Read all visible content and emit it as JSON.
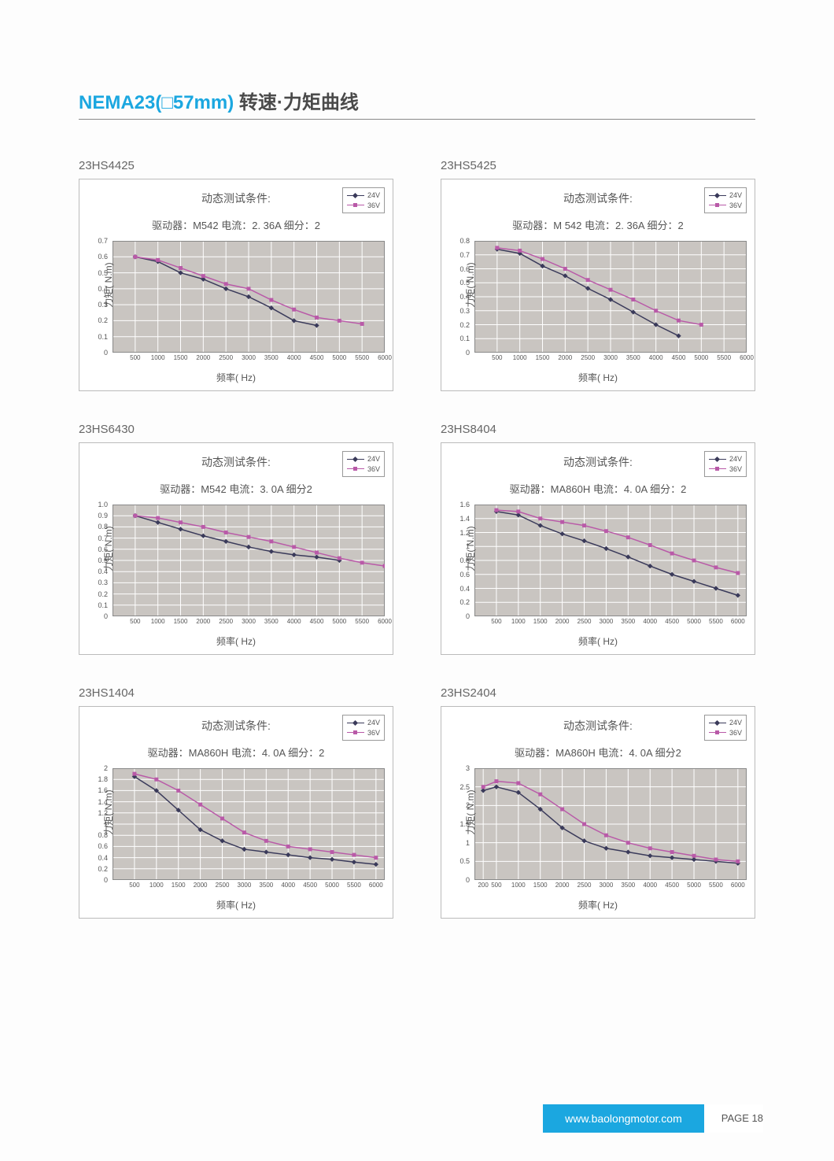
{
  "page_title_prefix": "NEMA23(",
  "page_title_size": "57mm)",
  "page_title_suffix": " 转速·力矩曲线",
  "footer_url": "www.baolongmotor.com",
  "footer_page": "PAGE 18",
  "legend": {
    "s1": "24V",
    "s2": "36V"
  },
  "axis_labels": {
    "y": "力矩( N.m)",
    "x": "频率( Hz)"
  },
  "cond_title": "动态测试条件:",
  "colors": {
    "s1": "#3a3a5a",
    "s2": "#b95aa8",
    "plot_bg": "#c9c5c1",
    "grid": "#ffffff",
    "tick_text": "#555555",
    "title_blue": "#1ba7e0"
  },
  "charts": [
    {
      "model": "23HS4425",
      "cond": "驱动器：M542    电流：2. 36A   细分：2",
      "ylim": [
        0,
        0.7
      ],
      "ystep": 0.1,
      "xticks": [
        500,
        1000,
        1500,
        2000,
        2500,
        3000,
        3500,
        4000,
        4500,
        5000,
        5500,
        6000
      ],
      "xlim": [
        0,
        6000
      ],
      "s1": [
        [
          500,
          0.6
        ],
        [
          1000,
          0.57
        ],
        [
          1500,
          0.5
        ],
        [
          2000,
          0.46
        ],
        [
          2500,
          0.4
        ],
        [
          3000,
          0.35
        ],
        [
          3500,
          0.28
        ],
        [
          4000,
          0.2
        ],
        [
          4500,
          0.17
        ]
      ],
      "s2": [
        [
          500,
          0.6
        ],
        [
          1000,
          0.58
        ],
        [
          1500,
          0.53
        ],
        [
          2000,
          0.48
        ],
        [
          2500,
          0.43
        ],
        [
          3000,
          0.4
        ],
        [
          3500,
          0.33
        ],
        [
          4000,
          0.27
        ],
        [
          4500,
          0.22
        ],
        [
          5000,
          0.2
        ],
        [
          5500,
          0.18
        ]
      ]
    },
    {
      "model": "23HS5425",
      "cond": "驱动器：M 542    电流：2. 36A   细分：2",
      "ylim": [
        0,
        0.8
      ],
      "ystep": 0.1,
      "xticks": [
        500,
        1000,
        1500,
        2000,
        2500,
        3000,
        3500,
        4000,
        4500,
        5000,
        5500,
        6000
      ],
      "xlim": [
        0,
        6000
      ],
      "s1": [
        [
          500,
          0.74
        ],
        [
          1000,
          0.71
        ],
        [
          1500,
          0.62
        ],
        [
          2000,
          0.55
        ],
        [
          2500,
          0.46
        ],
        [
          3000,
          0.38
        ],
        [
          3500,
          0.29
        ],
        [
          4000,
          0.2
        ],
        [
          4500,
          0.12
        ]
      ],
      "s2": [
        [
          500,
          0.75
        ],
        [
          1000,
          0.73
        ],
        [
          1500,
          0.67
        ],
        [
          2000,
          0.6
        ],
        [
          2500,
          0.52
        ],
        [
          3000,
          0.45
        ],
        [
          3500,
          0.38
        ],
        [
          4000,
          0.3
        ],
        [
          4500,
          0.23
        ],
        [
          5000,
          0.2
        ]
      ]
    },
    {
      "model": "23HS6430",
      "cond": "驱动器：M542    电流：3. 0A    细分2",
      "ylim": [
        0,
        1.0
      ],
      "ystep": 0.1,
      "xticks": [
        500,
        1000,
        1500,
        2000,
        2500,
        3000,
        3500,
        4000,
        4500,
        5000,
        5500,
        6000
      ],
      "xlim": [
        0,
        6000
      ],
      "s1": [
        [
          500,
          0.9
        ],
        [
          1000,
          0.84
        ],
        [
          1500,
          0.78
        ],
        [
          2000,
          0.72
        ],
        [
          2500,
          0.67
        ],
        [
          3000,
          0.62
        ],
        [
          3500,
          0.58
        ],
        [
          4000,
          0.55
        ],
        [
          4500,
          0.53
        ],
        [
          5000,
          0.5
        ]
      ],
      "s2": [
        [
          500,
          0.9
        ],
        [
          1000,
          0.88
        ],
        [
          1500,
          0.84
        ],
        [
          2000,
          0.8
        ],
        [
          2500,
          0.75
        ],
        [
          3000,
          0.71
        ],
        [
          3500,
          0.67
        ],
        [
          4000,
          0.62
        ],
        [
          4500,
          0.57
        ],
        [
          5000,
          0.52
        ],
        [
          5500,
          0.48
        ],
        [
          6000,
          0.45
        ]
      ]
    },
    {
      "model": "23HS8404",
      "cond": "驱动器：MA860H 电流：4. 0A    细分：2",
      "ylim": [
        0,
        1.6
      ],
      "ystep": 0.2,
      "xticks": [
        500,
        1000,
        1500,
        2000,
        2500,
        3000,
        3500,
        4000,
        4500,
        5000,
        5500,
        6000
      ],
      "xlim": [
        0,
        6200
      ],
      "s1": [
        [
          500,
          1.5
        ],
        [
          1000,
          1.45
        ],
        [
          1500,
          1.3
        ],
        [
          2000,
          1.18
        ],
        [
          2500,
          1.08
        ],
        [
          3000,
          0.97
        ],
        [
          3500,
          0.85
        ],
        [
          4000,
          0.72
        ],
        [
          4500,
          0.6
        ],
        [
          5000,
          0.5
        ],
        [
          5500,
          0.4
        ],
        [
          6000,
          0.3
        ]
      ],
      "s2": [
        [
          500,
          1.52
        ],
        [
          1000,
          1.5
        ],
        [
          1500,
          1.4
        ],
        [
          2000,
          1.35
        ],
        [
          2500,
          1.3
        ],
        [
          3000,
          1.22
        ],
        [
          3500,
          1.13
        ],
        [
          4000,
          1.02
        ],
        [
          4500,
          0.9
        ],
        [
          5000,
          0.8
        ],
        [
          5500,
          0.7
        ],
        [
          6000,
          0.62
        ]
      ]
    },
    {
      "model": "23HS1404",
      "cond": "驱动器：MA860H    电流：4. 0A    细分：2",
      "ylim": [
        0,
        2.0
      ],
      "ystep": 0.2,
      "xticks": [
        500,
        1000,
        1500,
        2000,
        2500,
        3000,
        3500,
        4000,
        4500,
        5000,
        5500,
        6000
      ],
      "xlim": [
        0,
        6200
      ],
      "s1": [
        [
          500,
          1.85
        ],
        [
          1000,
          1.6
        ],
        [
          1500,
          1.25
        ],
        [
          2000,
          0.9
        ],
        [
          2500,
          0.7
        ],
        [
          3000,
          0.55
        ],
        [
          3500,
          0.5
        ],
        [
          4000,
          0.45
        ],
        [
          4500,
          0.4
        ],
        [
          5000,
          0.37
        ],
        [
          5500,
          0.32
        ],
        [
          6000,
          0.28
        ]
      ],
      "s2": [
        [
          500,
          1.9
        ],
        [
          1000,
          1.8
        ],
        [
          1500,
          1.6
        ],
        [
          2000,
          1.35
        ],
        [
          2500,
          1.1
        ],
        [
          3000,
          0.85
        ],
        [
          3500,
          0.7
        ],
        [
          4000,
          0.6
        ],
        [
          4500,
          0.55
        ],
        [
          5000,
          0.5
        ],
        [
          5500,
          0.45
        ],
        [
          6000,
          0.4
        ]
      ]
    },
    {
      "model": "23HS2404",
      "cond": "驱动器：MA860H 电流：4. 0A    细分2",
      "ylim": [
        0,
        3.0
      ],
      "ystep": 0.5,
      "xticks": [
        200,
        500,
        1000,
        1500,
        2000,
        2500,
        3000,
        3500,
        4000,
        4500,
        5000,
        5500,
        6000
      ],
      "xlim": [
        0,
        6200
      ],
      "s1": [
        [
          200,
          2.4
        ],
        [
          500,
          2.5
        ],
        [
          1000,
          2.35
        ],
        [
          1500,
          1.9
        ],
        [
          2000,
          1.4
        ],
        [
          2500,
          1.05
        ],
        [
          3000,
          0.85
        ],
        [
          3500,
          0.75
        ],
        [
          4000,
          0.65
        ],
        [
          4500,
          0.6
        ],
        [
          5000,
          0.55
        ],
        [
          5500,
          0.5
        ],
        [
          6000,
          0.45
        ]
      ],
      "s2": [
        [
          200,
          2.5
        ],
        [
          500,
          2.65
        ],
        [
          1000,
          2.6
        ],
        [
          1500,
          2.3
        ],
        [
          2000,
          1.9
        ],
        [
          2500,
          1.5
        ],
        [
          3000,
          1.2
        ],
        [
          3500,
          1.0
        ],
        [
          4000,
          0.85
        ],
        [
          4500,
          0.75
        ],
        [
          5000,
          0.65
        ],
        [
          5500,
          0.55
        ],
        [
          6000,
          0.5
        ]
      ]
    }
  ]
}
